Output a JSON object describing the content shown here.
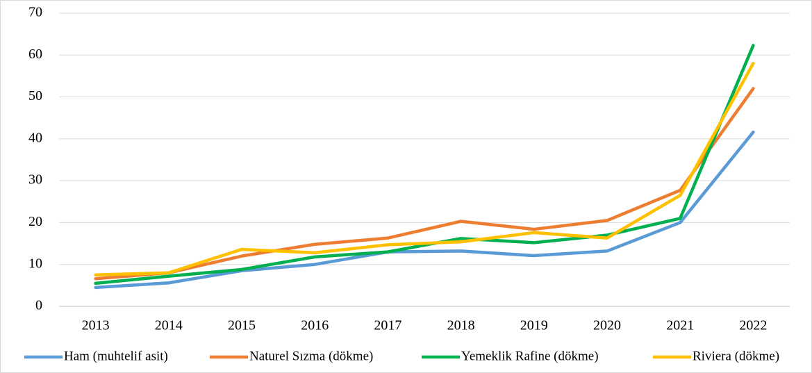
{
  "chart_data": {
    "type": "line",
    "categories": [
      "2013",
      "2014",
      "2015",
      "2016",
      "2017",
      "2018",
      "2019",
      "2020",
      "2021",
      "2022"
    ],
    "series": [
      {
        "name": "Ham (muhtelif asit)",
        "color": "#5b9bd5",
        "values": [
          4.5,
          5.6,
          8.5,
          10,
          13,
          13.2,
          12.1,
          13.2,
          20,
          41.6
        ]
      },
      {
        "name": "Naturel Sızma (dökme)",
        "color": "#ed7d31",
        "values": [
          6.6,
          8.0,
          12,
          14.8,
          16.3,
          20.3,
          18.4,
          20.5,
          27.7,
          52
        ]
      },
      {
        "name": "Yemeklik Rafine (dökme)",
        "color": "#00b050",
        "values": [
          5.5,
          7.2,
          8.8,
          11.8,
          13,
          16.2,
          15.2,
          17,
          21,
          62.3
        ]
      },
      {
        "name": "Riviera (dökme)",
        "color": "#ffc000",
        "values": [
          7.5,
          8.0,
          13.6,
          12.8,
          14.7,
          15.4,
          17.6,
          16.3,
          26.5,
          58
        ]
      }
    ],
    "ylim": [
      0,
      70
    ],
    "yticks": [
      0,
      10,
      20,
      30,
      40,
      50,
      60,
      70
    ],
    "grid": true,
    "legend": "bottom"
  }
}
